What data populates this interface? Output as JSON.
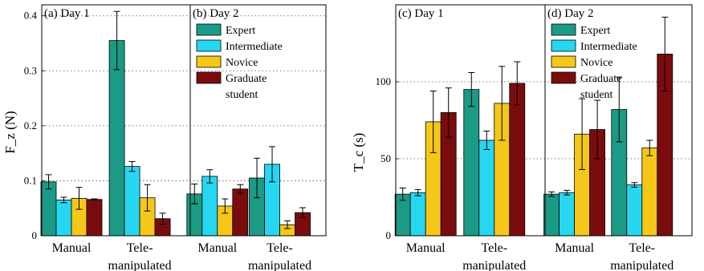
{
  "chart_data": [
    {
      "type": "bar",
      "ylabel": "F_z (N)",
      "ylim": [
        0,
        0.42
      ],
      "yticks": [
        0,
        0.1,
        0.2,
        0.3,
        0.4
      ],
      "ytick_labels": [
        "0",
        "0.1",
        "0.2",
        "0.3",
        "0.4"
      ],
      "grid": "dotted horizontal",
      "legend_placement": "upper-left of panel (b)",
      "legend": [
        "Expert",
        "Intermediate",
        "Novice",
        "Graduate student"
      ],
      "colors": [
        "#1b9a85",
        "#27d7f2",
        "#f6c718",
        "#7b0c0e"
      ],
      "panels": [
        {
          "title": "(a)  Day 1",
          "categories": [
            "Manual",
            "Tele-manipulated"
          ],
          "series": [
            {
              "name": "Expert",
              "values": [
                0.098,
                0.355
              ],
              "errors": [
                0.013,
                0.053
              ]
            },
            {
              "name": "Intermediate",
              "values": [
                0.065,
                0.126
              ],
              "errors": [
                0.005,
                0.009
              ]
            },
            {
              "name": "Novice",
              "values": [
                0.068,
                0.069
              ],
              "errors": [
                0.02,
                0.024
              ]
            },
            {
              "name": "Graduate student",
              "values": [
                0.066,
                0.031
              ],
              "errors": [
                0.001,
                0.01
              ]
            }
          ]
        },
        {
          "title": "(b)  Day 2",
          "categories": [
            "Manual",
            "Tele-manipulated"
          ],
          "series": [
            {
              "name": "Expert",
              "values": [
                0.076,
                0.105
              ],
              "errors": [
                0.018,
                0.036
              ]
            },
            {
              "name": "Intermediate",
              "values": [
                0.108,
                0.13
              ],
              "errors": [
                0.012,
                0.032
              ]
            },
            {
              "name": "Novice",
              "values": [
                0.054,
                0.02
              ],
              "errors": [
                0.013,
                0.007
              ]
            },
            {
              "name": "Graduate student",
              "values": [
                0.085,
                0.042
              ],
              "errors": [
                0.008,
                0.009
              ]
            }
          ]
        }
      ]
    },
    {
      "type": "bar",
      "ylabel": "T_c (s)",
      "ylim": [
        0,
        150
      ],
      "yticks": [
        0,
        50,
        100
      ],
      "ytick_labels": [
        "0",
        "50",
        "100"
      ],
      "grid": "dotted horizontal",
      "legend_placement": "upper-left of panel (d)",
      "legend": [
        "Expert",
        "Intermediate",
        "Novice",
        "Graduate student"
      ],
      "colors": [
        "#1b9a85",
        "#27d7f2",
        "#f6c718",
        "#7b0c0e"
      ],
      "panels": [
        {
          "title": "(c)  Day 1",
          "categories": [
            "Manual",
            "Tele-manipulated"
          ],
          "series": [
            {
              "name": "Expert",
              "values": [
                27,
                95
              ],
              "errors": [
                4,
                11
              ]
            },
            {
              "name": "Intermediate",
              "values": [
                28,
                62
              ],
              "errors": [
                2,
                6
              ]
            },
            {
              "name": "Novice",
              "values": [
                74,
                86
              ],
              "errors": [
                20,
                24
              ]
            },
            {
              "name": "Graduate student",
              "values": [
                80,
                99
              ],
              "errors": [
                16,
                14
              ]
            }
          ]
        },
        {
          "title": "(d)  Day 2",
          "categories": [
            "Manual",
            "Tele-manipulated"
          ],
          "series": [
            {
              "name": "Expert",
              "values": [
                27,
                82
              ],
              "errors": [
                1.5,
                21
              ]
            },
            {
              "name": "Intermediate",
              "values": [
                28,
                33
              ],
              "errors": [
                1.5,
                1.5
              ]
            },
            {
              "name": "Novice",
              "values": [
                66,
                57
              ],
              "errors": [
                23,
                5
              ]
            },
            {
              "name": "Graduate student",
              "values": [
                69,
                118
              ],
              "errors": [
                19,
                24
              ]
            }
          ]
        }
      ]
    }
  ]
}
